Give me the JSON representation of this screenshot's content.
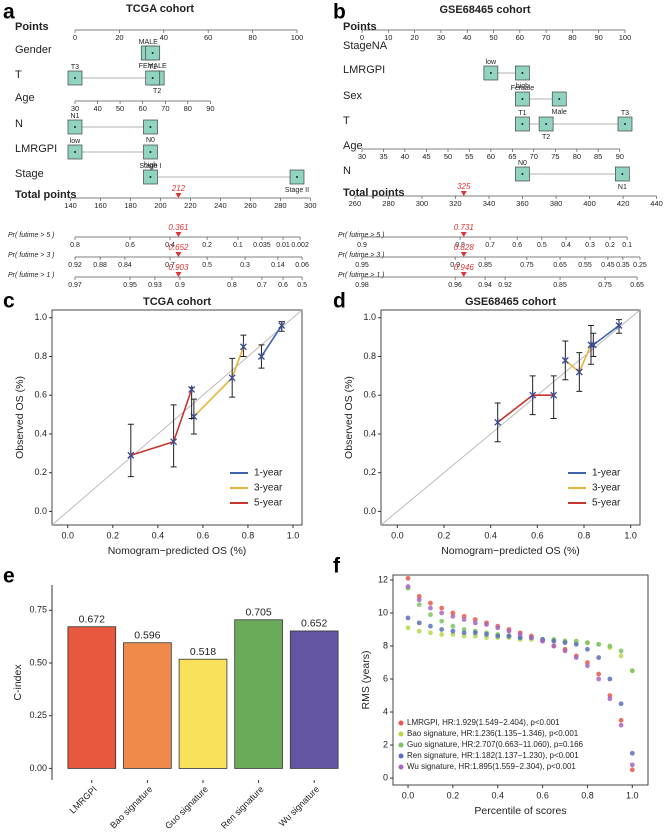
{
  "chart_data": [
    {
      "type": "nomogram",
      "label": "a",
      "title": "TCGA cohort",
      "rows": [
        {
          "name": "Points",
          "bold": true,
          "ticks": [
            0,
            20,
            40,
            60,
            80,
            100
          ],
          "points": [
            0,
            20,
            40,
            60,
            80,
            100
          ]
        },
        {
          "name": "Gender",
          "levels": [
            {
              "label": "MALE",
              "points": 33
            },
            {
              "label": "FEMALE",
              "points": 35
            }
          ]
        },
        {
          "name": "T",
          "levels": [
            {
              "label": "T3",
              "points": 0
            },
            {
              "label": "T2",
              "points": 37
            },
            {
              "label": "T1",
              "points": 35
            }
          ]
        },
        {
          "name": "Age",
          "ticks": [
            30,
            40,
            50,
            60,
            70,
            80,
            90
          ],
          "points": [
            0,
            10.2,
            20.3,
            30.5,
            40.7,
            50.8,
            61
          ]
        },
        {
          "name": "N",
          "levels": [
            {
              "label": "N1",
              "points": 0
            },
            {
              "label": "N0",
              "points": 34
            }
          ]
        },
        {
          "name": "LMRGPI",
          "levels": [
            {
              "label": "low",
              "points": 0
            },
            {
              "label": "high",
              "points": 34
            }
          ]
        },
        {
          "name": "Stage",
          "levels": [
            {
              "label": "Stage I",
              "points": 34
            },
            {
              "label": "Stage II",
              "points": 100
            }
          ]
        },
        {
          "name": "Total points",
          "bold": true,
          "ticks": [
            140,
            160,
            180,
            200,
            220,
            240,
            260,
            280,
            300
          ],
          "points": [
            -2,
            11.5,
            25,
            38.5,
            52,
            65.5,
            79,
            92.5,
            106
          ],
          "marker": 212,
          "marker_points": 46.6
        },
        {
          "name": "Pr( futime > 5 )",
          "ticks": [
            0.8,
            0.6,
            0.4,
            0.2,
            0.1,
            0.035,
            0.01,
            0.002
          ],
          "points": [
            0,
            24.8,
            42.8,
            59.5,
            73.4,
            84.2,
            93.7,
            101.4
          ],
          "marker": 0.361,
          "marker_points": 46.6
        },
        {
          "name": "Pr( futime > 3 )",
          "ticks": [
            0.92,
            0.88,
            0.84,
            0.7,
            0.5,
            0.3,
            0.14,
            0.06
          ],
          "points": [
            0,
            11.3,
            22.5,
            42.8,
            59.5,
            76.6,
            91.4,
            102.3
          ],
          "marker": 0.652,
          "marker_points": 46.6
        },
        {
          "name": "Pr( futime > 1 )",
          "ticks": [
            0.97,
            0.95,
            0.93,
            0.9,
            0.8,
            0.7,
            0.6,
            0.5
          ],
          "points": [
            0,
            24.8,
            36,
            47.3,
            70.7,
            84.2,
            93.7,
            102.3
          ],
          "marker": 0.903,
          "marker_points": 46.6
        }
      ]
    },
    {
      "type": "nomogram",
      "label": "b",
      "title": "GSE68465 cohort",
      "rows": [
        {
          "name": "Points",
          "bold": true,
          "ticks": [
            0,
            10,
            20,
            30,
            40,
            50,
            60,
            70,
            80,
            90,
            100
          ],
          "points": [
            0,
            10,
            20,
            30,
            40,
            50,
            60,
            70,
            80,
            90,
            100
          ]
        },
        {
          "name": "StageNA",
          "levels": []
        },
        {
          "name": "LMRGPI",
          "levels": [
            {
              "label": "low",
              "points": 49
            },
            {
              "label": "high",
              "points": 61
            }
          ]
        },
        {
          "name": "Sex",
          "levels": [
            {
              "label": "Female",
              "points": 61
            },
            {
              "label": "Male",
              "points": 75
            }
          ]
        },
        {
          "name": "T",
          "levels": [
            {
              "label": "T1",
              "points": 61
            },
            {
              "label": "T2",
              "points": 70
            },
            {
              "label": "T3",
              "points": 100
            }
          ]
        },
        {
          "name": "Age",
          "ticks": [
            30,
            35,
            40,
            45,
            50,
            55,
            60,
            65,
            70,
            75,
            80,
            85,
            90
          ],
          "points": [
            0,
            8.2,
            16.3,
            24.5,
            32.7,
            40.8,
            49,
            57.2,
            65.3,
            73.5,
            81.7,
            89.8,
            98
          ]
        },
        {
          "name": "N",
          "levels": [
            {
              "label": "N0",
              "points": 61
            },
            {
              "label": "N1",
              "points": 99
            }
          ]
        },
        {
          "name": "Total points",
          "bold": true,
          "ticks": [
            260,
            280,
            300,
            320,
            340,
            360,
            380,
            400,
            420,
            440
          ],
          "points": [
            -2.7,
            10.1,
            22.8,
            35.5,
            48.3,
            61,
            73.8,
            86.5,
            99.3,
            112
          ],
          "marker": 325,
          "marker_points": 38.7
        },
        {
          "name": "Pr( futime > 5 )",
          "ticks": [
            0.9,
            0.8,
            0.7,
            0.6,
            0.5,
            0.4,
            0.3,
            0.2,
            0.1
          ],
          "points": [
            0,
            37.3,
            48.7,
            59,
            68.4,
            77.6,
            86.7,
            94.3,
            100.8
          ],
          "marker": 0.731,
          "marker_points": 38.7
        },
        {
          "name": "Pr( futime > 3 )",
          "ticks": [
            0.95,
            0.9,
            0.85,
            0.75,
            0.65,
            0.55,
            0.45,
            0.35,
            0.25
          ],
          "points": [
            0,
            35.4,
            46.8,
            62.7,
            75.3,
            84.8,
            93.5,
            99.2,
            105.7
          ],
          "marker": 0.828,
          "marker_points": 38.7
        },
        {
          "name": "Pr( futime > 1 )",
          "ticks": [
            0.98,
            0.96,
            0.94,
            0.92,
            0.85,
            0.75,
            0.65
          ],
          "points": [
            0,
            35.4,
            46.8,
            54.4,
            75.3,
            92.4,
            104.6
          ],
          "marker": 0.946,
          "marker_points": 38.7
        }
      ]
    },
    {
      "type": "line",
      "label": "c",
      "title": "TCGA cohort",
      "xlabel": "Nomogram−predicted OS (%)",
      "ylabel": "Observed OS (%)",
      "xlim": [
        -0.07,
        1.04
      ],
      "ylim": [
        -0.07,
        1.04
      ],
      "xticks": [
        {
          "value": 0,
          "label": "0.0"
        },
        0.2,
        0.4,
        0.6,
        0.8,
        {
          "value": 1,
          "label": "1.0"
        }
      ],
      "yticks": [
        {
          "value": 0,
          "label": "0.0"
        },
        0.2,
        0.4,
        0.6,
        0.8,
        {
          "value": 1,
          "label": "1.0"
        }
      ],
      "legend": "lower right",
      "diagonal": true,
      "series": [
        {
          "name": "1-year",
          "color": "#3f64ad",
          "x": [
            0.86,
            0.95
          ],
          "values": [
            0.8,
            0.96
          ],
          "lower": [
            0.74,
            0.93
          ],
          "upper": [
            0.86,
            0.98
          ]
        },
        {
          "name": "3-year",
          "color": "#e8b33b",
          "x": [
            0.56,
            0.73,
            0.78
          ],
          "values": [
            0.49,
            0.69,
            0.85
          ],
          "lower": [
            0.4,
            0.59,
            0.8
          ],
          "upper": [
            0.58,
            0.79,
            0.91
          ]
        },
        {
          "name": "5-year",
          "color": "#c8352c",
          "x": [
            0.28,
            0.47,
            0.55
          ],
          "values": [
            0.29,
            0.36,
            0.63
          ],
          "lower": [
            0.18,
            0.23,
            0.48
          ],
          "upper": [
            0.45,
            0.55,
            0.64
          ]
        }
      ]
    },
    {
      "type": "line",
      "label": "d",
      "title": "GSE68465 cohort",
      "xlabel": "Nomogram−predicted OS (%)",
      "ylabel": "Observed OS (%)",
      "xlim": [
        -0.07,
        1.04
      ],
      "ylim": [
        -0.07,
        1.04
      ],
      "xticks": [
        {
          "value": 0,
          "label": "0.0"
        },
        0.2,
        0.4,
        0.6,
        0.8,
        {
          "value": 1,
          "label": "1.0"
        }
      ],
      "yticks": [
        {
          "value": 0,
          "label": "0.0"
        },
        0.2,
        0.4,
        0.6,
        0.8,
        {
          "value": 1,
          "label": "1.0"
        }
      ],
      "legend": "lower right",
      "diagonal": true,
      "series": [
        {
          "name": "1-year",
          "color": "#3f64ad",
          "x": [
            0.84,
            0.95
          ],
          "values": [
            0.86,
            0.96
          ],
          "lower": [
            0.8,
            0.92
          ],
          "upper": [
            0.92,
            0.99
          ]
        },
        {
          "name": "3-year",
          "color": "#e8b33b",
          "x": [
            0.72,
            0.78,
            0.83
          ],
          "values": [
            0.78,
            0.72,
            0.86
          ],
          "lower": [
            0.68,
            0.62,
            0.76
          ],
          "upper": [
            0.88,
            0.82,
            0.96
          ]
        },
        {
          "name": "5-year",
          "color": "#c8352c",
          "x": [
            0.43,
            0.58,
            0.67
          ],
          "values": [
            0.46,
            0.6,
            0.6
          ],
          "lower": [
            0.36,
            0.5,
            0.48
          ],
          "upper": [
            0.56,
            0.7,
            0.7
          ]
        }
      ]
    },
    {
      "type": "bar",
      "label": "e",
      "ylabel": "C-index",
      "categories": [
        "LMRGPI",
        "Bao signature",
        "Guo signature",
        "Ren signature",
        "Wu signature"
      ],
      "values": [
        0.672,
        0.596,
        0.518,
        0.705,
        0.652
      ],
      "colors": [
        "#e8583e",
        "#f08a4b",
        "#f9e15c",
        "#6aab5a",
        "#6456a3"
      ],
      "ylim": [
        -0.055,
        0.87
      ],
      "yticks": [
        {
          "value": 0,
          "label": "0.00"
        },
        0.25,
        {
          "value": 0.5,
          "label": "0.50"
        },
        0.75
      ]
    },
    {
      "type": "scatter",
      "label": "f",
      "xlabel": "Percentile of scores",
      "ylabel": "RMS (years)",
      "xlim": [
        -0.067,
        1.07
      ],
      "ylim": [
        -0.42,
        12.3
      ],
      "xticks": [
        {
          "value": 0,
          "label": "0.0"
        },
        0.2,
        0.4,
        0.6,
        0.8,
        {
          "value": 1,
          "label": "1.0"
        }
      ],
      "yticks": [
        0,
        2,
        4,
        6,
        8,
        10,
        12
      ],
      "legend": "lower left",
      "x": [
        0,
        0.05,
        0.1,
        0.15,
        0.2,
        0.25,
        0.3,
        0.35,
        0.4,
        0.45,
        0.5,
        0.55,
        0.6,
        0.65,
        0.7,
        0.75,
        0.8,
        0.85,
        0.9,
        0.95,
        1
      ],
      "series": [
        {
          "name": "LMRGPI, HR:1.929(1.549−2.404), p<0.001",
          "color": "#e8584a",
          "values": [
            12.1,
            11.0,
            10.6,
            10.3,
            10.0,
            9.8,
            9.6,
            9.4,
            9.2,
            9.0,
            8.8,
            8.6,
            8.3,
            8.0,
            7.8,
            7.4,
            7.0,
            6.3,
            5.0,
            3.5,
            0.5
          ]
        },
        {
          "name": "Bao signature, HR:1.236(1.135−1.346), p<0.001",
          "color": "#b6d94c",
          "values": [
            9.1,
            8.9,
            8.8,
            8.7,
            8.7,
            8.6,
            8.6,
            8.5,
            8.5,
            8.5,
            8.4,
            8.4,
            8.4,
            8.3,
            8.3,
            8.2,
            8.2,
            8.1,
            7.9,
            7.4,
            6.5
          ]
        },
        {
          "name": "Guo signature, HR:2.707(0.663−11.060), p=0.166",
          "color": "#7dc462",
          "values": [
            11.5,
            10.5,
            9.9,
            9.5,
            9.2,
            9.0,
            8.9,
            8.8,
            8.7,
            8.6,
            8.5,
            8.5,
            8.4,
            8.4,
            8.3,
            8.3,
            8.2,
            8.1,
            8.0,
            7.7,
            6.5
          ]
        },
        {
          "name": "Ren signature, HR:1.182(1.137−1.230), p<0.001",
          "color": "#5b6fbf",
          "values": [
            9.7,
            9.4,
            9.2,
            9.0,
            8.9,
            8.8,
            8.8,
            8.7,
            8.6,
            8.6,
            8.5,
            8.5,
            8.4,
            8.3,
            8.2,
            8.1,
            7.8,
            7.3,
            6.0,
            4.5,
            1.5
          ]
        },
        {
          "name": "Wu signature, HR:1.895(1.559−2.304), p<0.001",
          "color": "#a866c4",
          "values": [
            11.6,
            10.8,
            10.3,
            10.0,
            9.8,
            9.6,
            9.4,
            9.3,
            9.1,
            8.9,
            8.7,
            8.5,
            8.3,
            8.0,
            7.7,
            7.3,
            6.8,
            6.0,
            4.8,
            3.2,
            0.8
          ]
        }
      ]
    }
  ]
}
